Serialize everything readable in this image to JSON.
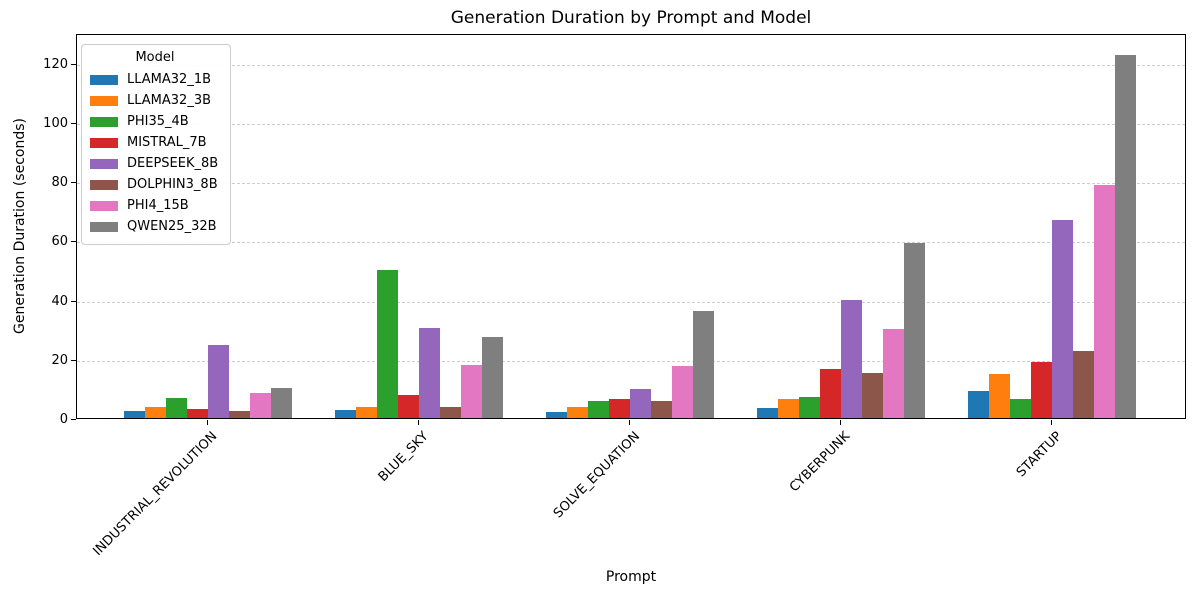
{
  "chart_data": {
    "type": "bar",
    "title": "Generation Duration by Prompt and Model",
    "xlabel": "Prompt",
    "ylabel": "Generation Duration (seconds)",
    "ylim": [
      0,
      130
    ],
    "yticks": [
      0,
      20,
      40,
      60,
      80,
      100,
      120
    ],
    "grid": "horizontal-dashed",
    "gridline_color": "#cccccc",
    "legend": {
      "title": "Model",
      "position": "upper-left"
    },
    "categories": [
      "INDUSTRIAL_REVOLUTION",
      "BLUE_SKY",
      "SOLVE_EQUATION",
      "CYBERPUNK",
      "STARTUP"
    ],
    "series": [
      {
        "name": "LLAMA32_1B",
        "color": "#1f77b4",
        "values": [
          2.3,
          2.6,
          2.0,
          3.5,
          9.0
        ]
      },
      {
        "name": "LLAMA32_3B",
        "color": "#ff7f0e",
        "values": [
          3.8,
          3.9,
          3.9,
          6.6,
          15.0
        ]
      },
      {
        "name": "PHI35_4B",
        "color": "#2ca02c",
        "values": [
          6.8,
          50.0,
          5.6,
          7.0,
          6.5
        ]
      },
      {
        "name": "MISTRAL_7B",
        "color": "#d62728",
        "values": [
          2.9,
          7.7,
          6.6,
          16.4,
          18.9
        ]
      },
      {
        "name": "DEEPSEEK_8B",
        "color": "#9467bd",
        "values": [
          24.8,
          30.3,
          9.9,
          39.8,
          67.0
        ]
      },
      {
        "name": "DOLPHIN3_8B",
        "color": "#8c564b",
        "values": [
          2.4,
          3.9,
          5.7,
          15.1,
          22.8
        ]
      },
      {
        "name": "PHI4_15B",
        "color": "#e377c2",
        "values": [
          8.5,
          17.8,
          17.5,
          30.0,
          78.7
        ]
      },
      {
        "name": "QWEN25_32B",
        "color": "#7f7f7f",
        "values": [
          10.2,
          27.3,
          36.0,
          59.2,
          122.5
        ]
      }
    ]
  }
}
